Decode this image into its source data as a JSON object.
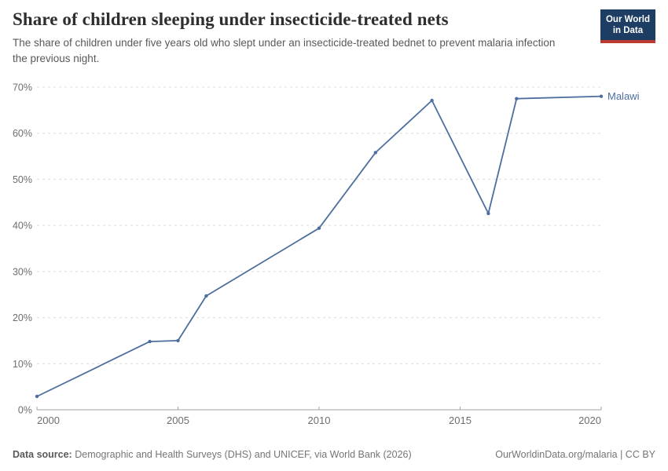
{
  "header": {
    "title": "Share of children sleeping under insecticide-treated nets",
    "subtitle": "The share of children under five years old who slept under an insecticide-treated bednet to prevent malaria infection the previous night.",
    "logo": {
      "line1": "Our World",
      "line2": "in Data"
    }
  },
  "chart_data": {
    "type": "line",
    "title": "Share of children sleeping under insecticide-treated nets",
    "xlabel": "",
    "ylabel": "",
    "xlim": [
      2000,
      2020
    ],
    "ylim": [
      0,
      70
    ],
    "xticks": [
      2000,
      2005,
      2010,
      2015,
      2020
    ],
    "yticks": [
      0,
      10,
      20,
      30,
      40,
      50,
      60,
      70
    ],
    "ytick_suffix": "%",
    "grid": "horizontal-dashed",
    "legend_position": "end-of-line",
    "series": [
      {
        "name": "Malawi",
        "color": "#4d6e9f",
        "points": [
          {
            "x": 2000,
            "y": 2.9
          },
          {
            "x": 2004,
            "y": 14.8
          },
          {
            "x": 2005,
            "y": 15.0
          },
          {
            "x": 2006,
            "y": 24.7
          },
          {
            "x": 2010,
            "y": 39.4
          },
          {
            "x": 2012,
            "y": 55.8
          },
          {
            "x": 2014,
            "y": 67.1
          },
          {
            "x": 2016,
            "y": 42.6
          },
          {
            "x": 2017,
            "y": 67.5
          },
          {
            "x": 2020,
            "y": 68.0
          }
        ]
      }
    ]
  },
  "footer": {
    "source_label": "Data source:",
    "source_text": "Demographic and Health Surveys (DHS) and UNICEF, via World Bank (2026)",
    "credit": "OurWorldinData.org/malaria | CC BY"
  },
  "colors": {
    "line": "#4d6e9f",
    "logo_bg": "#1d3d63",
    "logo_stripe": "#bc3a32",
    "grid": "#dcdcdc",
    "axis": "#a3a3a3",
    "tick_text": "#6e6e6e"
  }
}
